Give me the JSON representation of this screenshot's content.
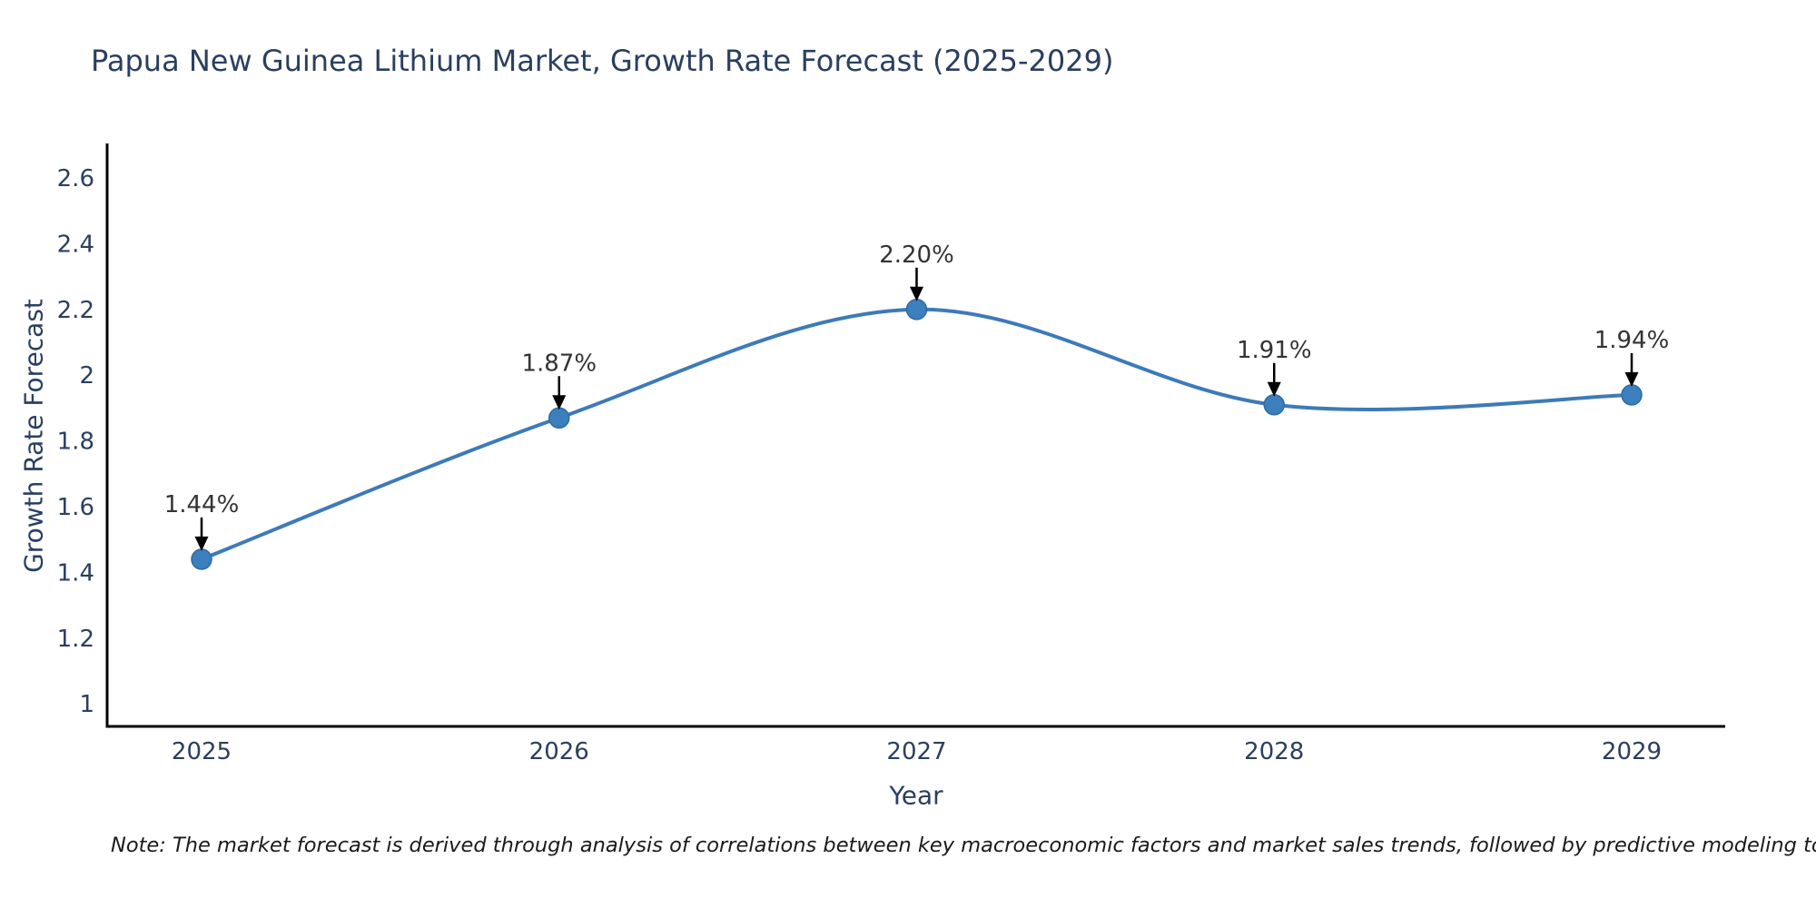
{
  "chart_data": {
    "type": "line",
    "curve": "spline",
    "title": "Papua New Guinea Lithium Market, Growth Rate Forecast (2025-2029)",
    "xlabel": "Year",
    "ylabel": "Growth Rate Forecast",
    "x": [
      "2025",
      "2026",
      "2027",
      "2028",
      "2029"
    ],
    "values": [
      1.44,
      1.87,
      2.2,
      1.91,
      1.94
    ],
    "point_labels": [
      "1.44%",
      "1.87%",
      "2.20%",
      "1.91%",
      "1.94%"
    ],
    "y_tick_values": [
      1,
      1.2,
      1.4,
      1.6,
      1.8,
      2,
      2.2,
      2.4,
      2.6
    ],
    "y_tick_labels": [
      "1",
      "1.2",
      "1.4",
      "1.6",
      "1.8",
      "2",
      "2.2",
      "2.4",
      "2.6"
    ],
    "ylim": [
      0.93,
      2.7
    ],
    "grid": false,
    "legend": false,
    "note": "Note: The market forecast is derived through analysis of correlations between key macroeconomic factors and market sales trends, followed by predictive modeling to project future sales",
    "colors": {
      "line": "#3d7ab8",
      "marker": "#3c7fbd",
      "marker_edge": "#2f6ba3",
      "annotation_text": "#333333",
      "arrow": "#000000",
      "axis": "#000000",
      "tick_text": "#2a3f5f",
      "title_text": "#2a3f5f"
    }
  }
}
